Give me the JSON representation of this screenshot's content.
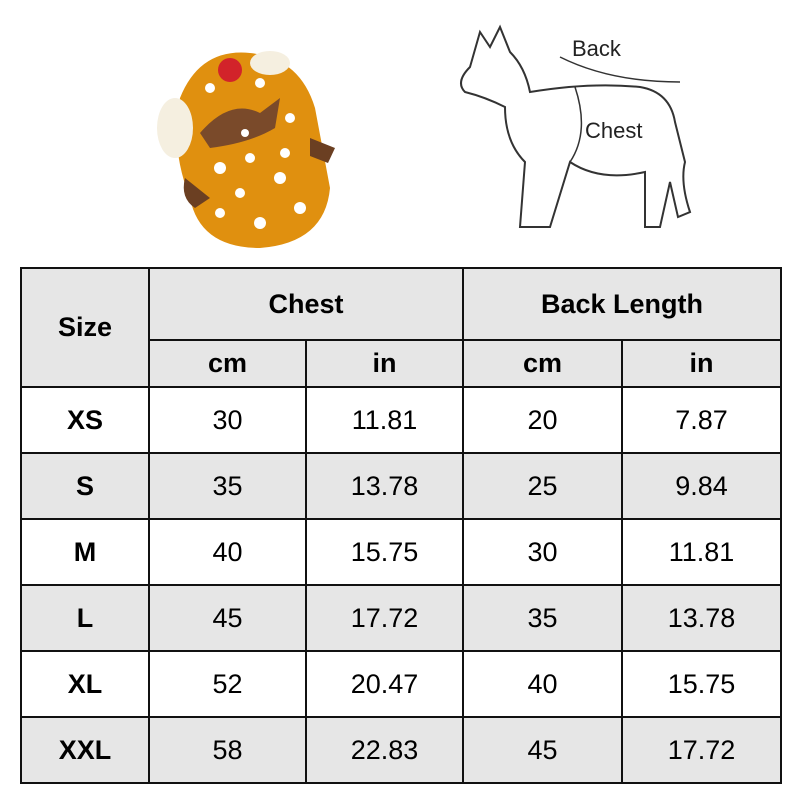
{
  "diagram": {
    "back_label": "Back",
    "chest_label": "Chest"
  },
  "colors": {
    "jacket": "#e0900f",
    "header_bg": "#e6e6e6",
    "border": "#111111"
  },
  "table": {
    "size_header": "Size",
    "groups": [
      "Chest",
      "Back Length"
    ],
    "units": [
      "cm",
      "in",
      "cm",
      "in"
    ],
    "rows": [
      [
        "XS",
        "30",
        "11.81",
        "20",
        "7.87"
      ],
      [
        "S",
        "35",
        "13.78",
        "25",
        "9.84"
      ],
      [
        "M",
        "40",
        "15.75",
        "30",
        "11.81"
      ],
      [
        "L",
        "45",
        "17.72",
        "35",
        "13.78"
      ],
      [
        "XL",
        "52",
        "20.47",
        "40",
        "15.75"
      ],
      [
        "XXL",
        "58",
        "22.83",
        "45",
        "17.72"
      ]
    ]
  }
}
